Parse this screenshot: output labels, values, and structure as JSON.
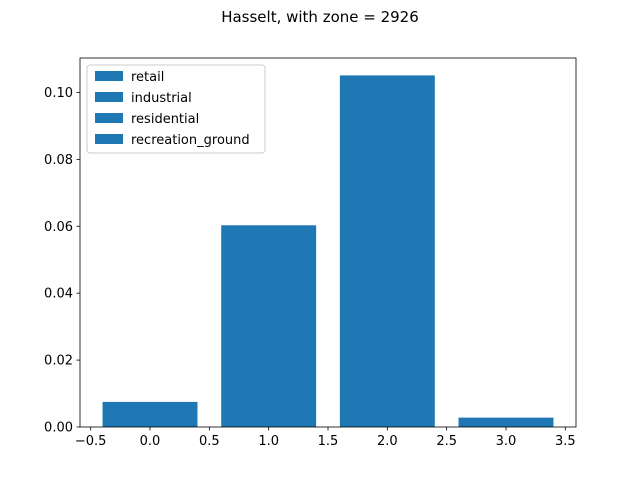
{
  "chart_data": {
    "type": "bar",
    "title": "Hasselt, with zone = 2926",
    "xlabel": "",
    "ylabel": "",
    "x": [
      0,
      1,
      2,
      3
    ],
    "series": [
      {
        "name": "retail",
        "values": [
          0.0075,
          null,
          null,
          null
        ]
      },
      {
        "name": "industrial",
        "values": [
          null,
          0.0603,
          null,
          null
        ]
      },
      {
        "name": "residential",
        "values": [
          null,
          null,
          0.1051,
          null
        ]
      },
      {
        "name": "recreation_ground",
        "values": [
          null,
          null,
          null,
          0.0028
        ]
      }
    ],
    "bar_width": 0.8,
    "xlim": [
      -0.59,
      3.59
    ],
    "ylim": [
      0,
      0.1103
    ],
    "xticks": [
      -0.5,
      0.0,
      0.5,
      1.0,
      1.5,
      2.0,
      2.5,
      3.0,
      3.5
    ],
    "xtick_labels": [
      "−0.5",
      "0.0",
      "0.5",
      "1.0",
      "1.5",
      "2.0",
      "2.5",
      "3.0",
      "3.5"
    ],
    "yticks": [
      0.0,
      0.02,
      0.04,
      0.06,
      0.08,
      0.1
    ],
    "ytick_labels": [
      "0.00",
      "0.02",
      "0.04",
      "0.06",
      "0.08",
      "0.10"
    ],
    "bar_color": "#1f77b4",
    "grid": false,
    "legend_position": "top-left"
  }
}
